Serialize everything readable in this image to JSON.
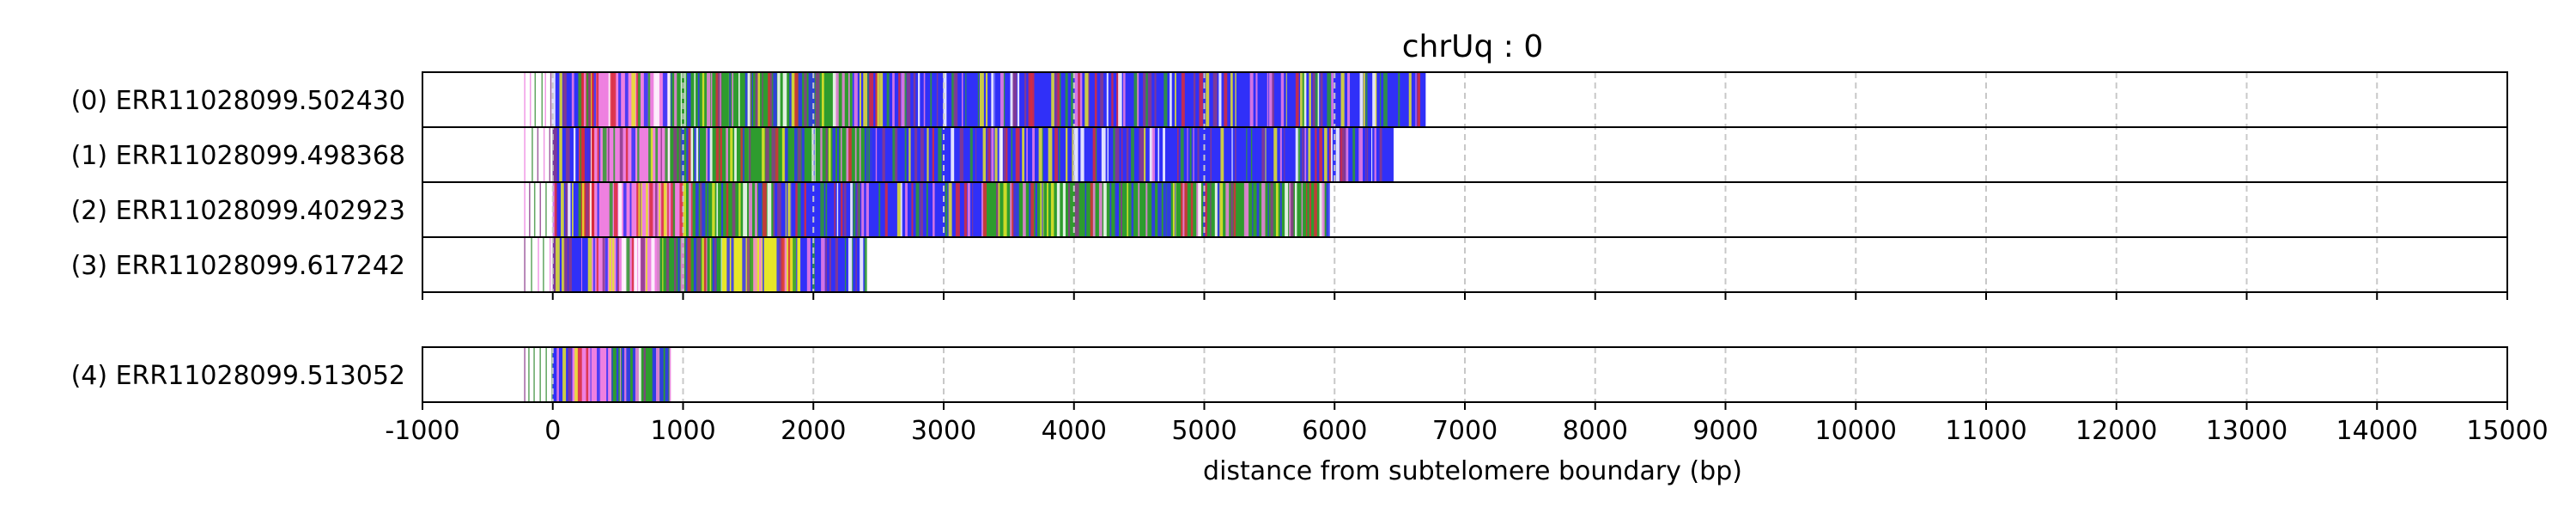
{
  "chart_data": {
    "type": "heatmap",
    "title": "chrUq : 0",
    "xlabel": "distance from subtelomere boundary (bp)",
    "ylabel": "",
    "xlim": [
      -1000,
      15000
    ],
    "x_ticks": [
      -1000,
      0,
      1000,
      2000,
      3000,
      4000,
      5000,
      6000,
      7000,
      8000,
      9000,
      10000,
      11000,
      12000,
      13000,
      14000,
      15000
    ],
    "x_tick_labels": [
      "-1000",
      "0",
      "1000",
      "2000",
      "3000",
      "4000",
      "5000",
      "6000",
      "7000",
      "8000",
      "9000",
      "10000",
      "11000",
      "12000",
      "13000",
      "14000",
      "15000"
    ],
    "grid": "vertical dashed at x ticks",
    "colors": {
      "blue": "#3030f8",
      "green": "#2e9c2e",
      "red": "#d92b3a",
      "pink": "#ee80e0",
      "yellow": "#e6e628",
      "purple": "#8a3a8a",
      "thin_green": "#3a8f3a",
      "grid": "#c8c8c8",
      "frame": "#000000"
    },
    "groups": [
      {
        "reads": [
          {
            "label": "(0) ERR11028099.502430",
            "start": -220,
            "end": 6700,
            "segments": [
              {
                "start": 0,
                "end": 200,
                "color": "blue"
              },
              {
                "start": 200,
                "end": 320,
                "color": "red"
              },
              {
                "start": 320,
                "end": 900,
                "color": "pink"
              },
              {
                "start": 900,
                "end": 1350,
                "color": "green"
              },
              {
                "start": 1350,
                "end": 2300,
                "color": "green"
              },
              {
                "start": 2300,
                "end": 6700,
                "color": "blue"
              }
            ]
          },
          {
            "label": "(1) ERR11028099.498368",
            "start": -220,
            "end": 6450,
            "segments": [
              {
                "start": 0,
                "end": 200,
                "color": "blue"
              },
              {
                "start": 200,
                "end": 320,
                "color": "red"
              },
              {
                "start": 320,
                "end": 900,
                "color": "pink"
              },
              {
                "start": 900,
                "end": 1500,
                "color": "green"
              },
              {
                "start": 1500,
                "end": 2450,
                "color": "green"
              },
              {
                "start": 2450,
                "end": 6450,
                "color": "blue"
              }
            ]
          },
          {
            "label": "(2) ERR11028099.402923",
            "start": -220,
            "end": 5950,
            "segments": [
              {
                "start": 0,
                "end": 200,
                "color": "blue"
              },
              {
                "start": 200,
                "end": 320,
                "color": "red"
              },
              {
                "start": 320,
                "end": 1000,
                "color": "pink"
              },
              {
                "start": 1000,
                "end": 1700,
                "color": "green"
              },
              {
                "start": 1700,
                "end": 3300,
                "color": "blue"
              },
              {
                "start": 3300,
                "end": 5950,
                "color": "green"
              }
            ]
          },
          {
            "label": "(3) ERR11028099.617242",
            "start": -220,
            "end": 2400,
            "segments": [
              {
                "start": 0,
                "end": 300,
                "color": "blue"
              },
              {
                "start": 300,
                "end": 800,
                "color": "pink"
              },
              {
                "start": 800,
                "end": 1300,
                "color": "green"
              },
              {
                "start": 1300,
                "end": 1900,
                "color": "yellow"
              },
              {
                "start": 1900,
                "end": 2400,
                "color": "blue"
              }
            ]
          }
        ]
      },
      {
        "reads": [
          {
            "label": "(4) ERR11028099.513052",
            "start": -220,
            "end": 900,
            "segments": [
              {
                "start": 0,
                "end": 150,
                "color": "blue"
              },
              {
                "start": 150,
                "end": 450,
                "color": "pink"
              },
              {
                "start": 450,
                "end": 900,
                "color": "green"
              }
            ]
          }
        ]
      }
    ]
  }
}
